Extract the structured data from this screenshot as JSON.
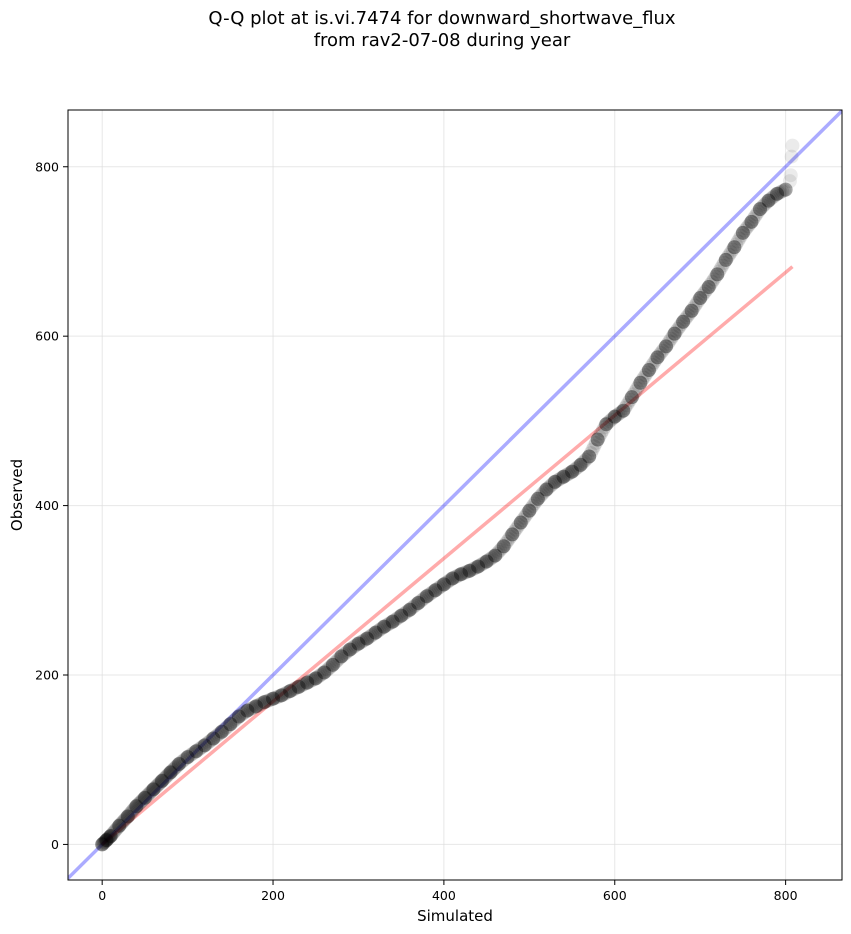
{
  "chart_data": {
    "type": "scatter",
    "title_line1": "Q-Q plot at is.vi.7474 for downward_shortwave_flux",
    "title_line2": "from rav2-07-08 during year",
    "xlabel": "Simulated",
    "ylabel": "Observed",
    "xlim": [
      -40,
      866
    ],
    "ylim": [
      -42,
      867
    ],
    "xticks": [
      0,
      200,
      400,
      600,
      800
    ],
    "yticks": [
      0,
      200,
      400,
      600,
      800
    ],
    "grid": true,
    "series": [
      {
        "kind": "quantiles",
        "color": "#000000",
        "points": [
          [
            0,
            0
          ],
          [
            5,
            5
          ],
          [
            10,
            10
          ],
          [
            20,
            22
          ],
          [
            30,
            33
          ],
          [
            40,
            45
          ],
          [
            50,
            55
          ],
          [
            60,
            65
          ],
          [
            70,
            75
          ],
          [
            80,
            85
          ],
          [
            90,
            95
          ],
          [
            100,
            103
          ],
          [
            110,
            110
          ],
          [
            120,
            117
          ],
          [
            130,
            125
          ],
          [
            140,
            133
          ],
          [
            150,
            142
          ],
          [
            160,
            151
          ],
          [
            170,
            158
          ],
          [
            180,
            163
          ],
          [
            190,
            168
          ],
          [
            200,
            172
          ],
          [
            210,
            176
          ],
          [
            220,
            181
          ],
          [
            230,
            186
          ],
          [
            240,
            191
          ],
          [
            250,
            196
          ],
          [
            260,
            203
          ],
          [
            270,
            212
          ],
          [
            280,
            222
          ],
          [
            290,
            230
          ],
          [
            300,
            237
          ],
          [
            310,
            243
          ],
          [
            320,
            250
          ],
          [
            330,
            257
          ],
          [
            340,
            263
          ],
          [
            350,
            270
          ],
          [
            360,
            277
          ],
          [
            370,
            285
          ],
          [
            380,
            293
          ],
          [
            390,
            300
          ],
          [
            400,
            307
          ],
          [
            410,
            314
          ],
          [
            420,
            319
          ],
          [
            430,
            323
          ],
          [
            440,
            328
          ],
          [
            450,
            334
          ],
          [
            460,
            341
          ],
          [
            470,
            352
          ],
          [
            480,
            366
          ],
          [
            490,
            380
          ],
          [
            500,
            394
          ],
          [
            510,
            408
          ],
          [
            520,
            419
          ],
          [
            530,
            428
          ],
          [
            540,
            434
          ],
          [
            550,
            440
          ],
          [
            560,
            448
          ],
          [
            570,
            458
          ],
          [
            580,
            478
          ],
          [
            590,
            496
          ],
          [
            600,
            505
          ],
          [
            610,
            512
          ],
          [
            620,
            528
          ],
          [
            630,
            545
          ],
          [
            640,
            560
          ],
          [
            650,
            575
          ],
          [
            660,
            588
          ],
          [
            670,
            603
          ],
          [
            680,
            617
          ],
          [
            690,
            630
          ],
          [
            700,
            645
          ],
          [
            710,
            658
          ],
          [
            720,
            673
          ],
          [
            730,
            690
          ],
          [
            740,
            705
          ],
          [
            750,
            722
          ],
          [
            760,
            735
          ],
          [
            770,
            750
          ],
          [
            780,
            760
          ],
          [
            790,
            768
          ],
          [
            800,
            773
          ]
        ],
        "outliers": [
          [
            805,
            783
          ],
          [
            806,
            790
          ],
          [
            807,
            812
          ],
          [
            808,
            825
          ]
        ]
      },
      {
        "kind": "fit-line",
        "color": "#ff0000",
        "from": [
          0,
          0
        ],
        "to": [
          808,
          682
        ]
      },
      {
        "kind": "one-to-one",
        "color": "#0000ff",
        "from": [
          -40,
          -40
        ],
        "to": [
          866,
          866
        ]
      }
    ]
  }
}
